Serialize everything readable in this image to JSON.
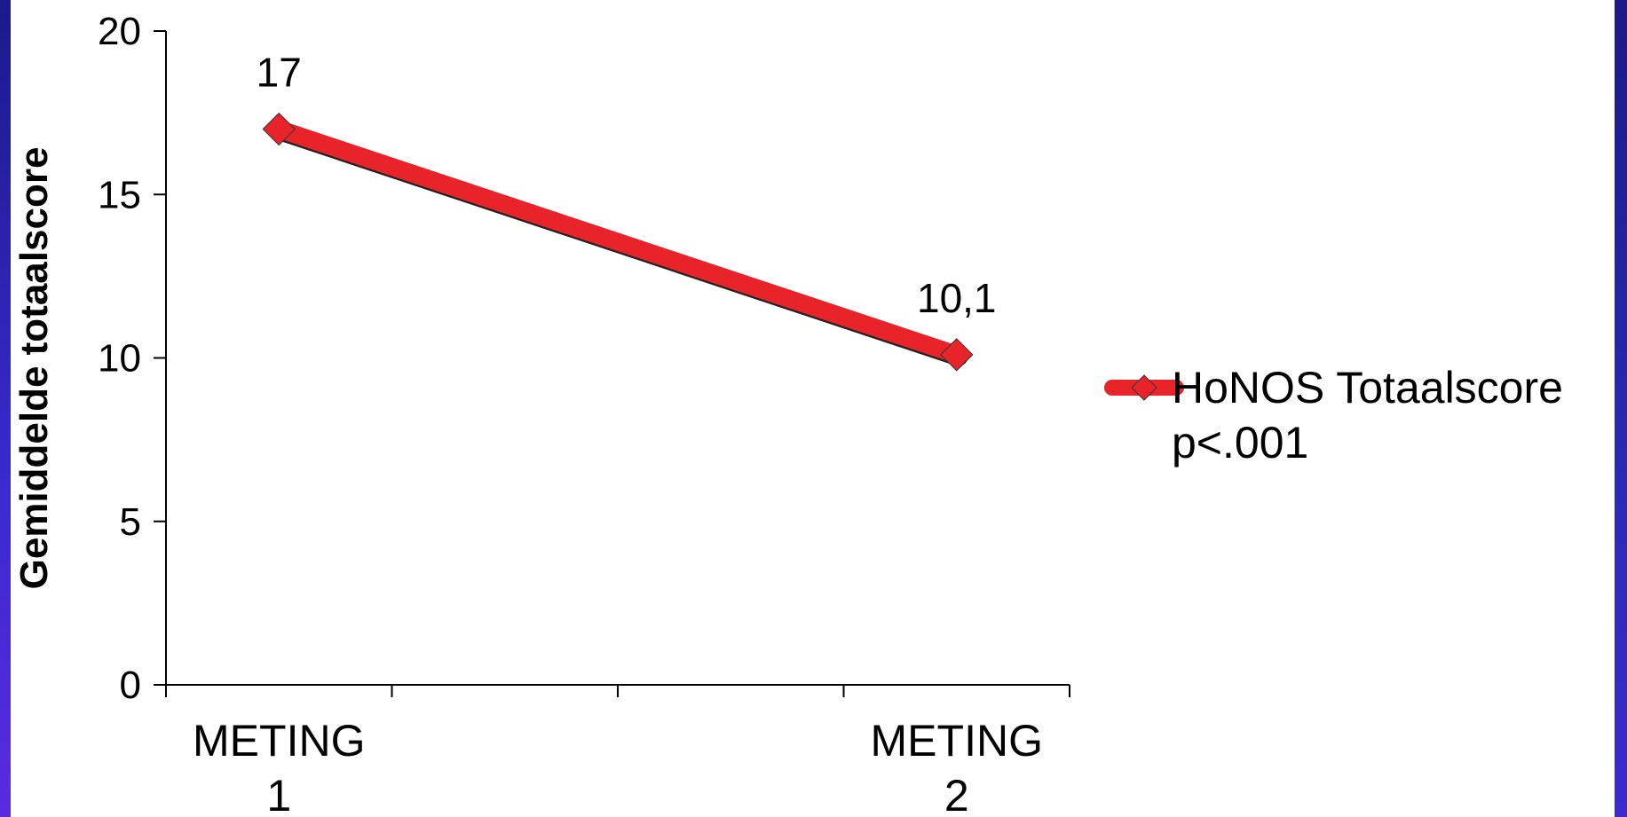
{
  "chart_data": {
    "type": "line",
    "categories": [
      [
        "METING",
        "1"
      ],
      [
        "METING",
        "2"
      ]
    ],
    "series": [
      {
        "name": [
          "HoNOS Totaalscore",
          "p<.001"
        ],
        "values": [
          17,
          10.1
        ],
        "labels": [
          "17",
          "10,1"
        ],
        "color": "#e8232a",
        "marker": "diamond"
      }
    ],
    "ylabel": "Gemiddelde totaalscore",
    "xlabel": "",
    "ylim": [
      0,
      20
    ],
    "yticks": [
      0,
      5,
      10,
      15,
      20
    ],
    "grid": false,
    "legend": "right"
  },
  "colors": {
    "frame": "#1f1aa8"
  }
}
